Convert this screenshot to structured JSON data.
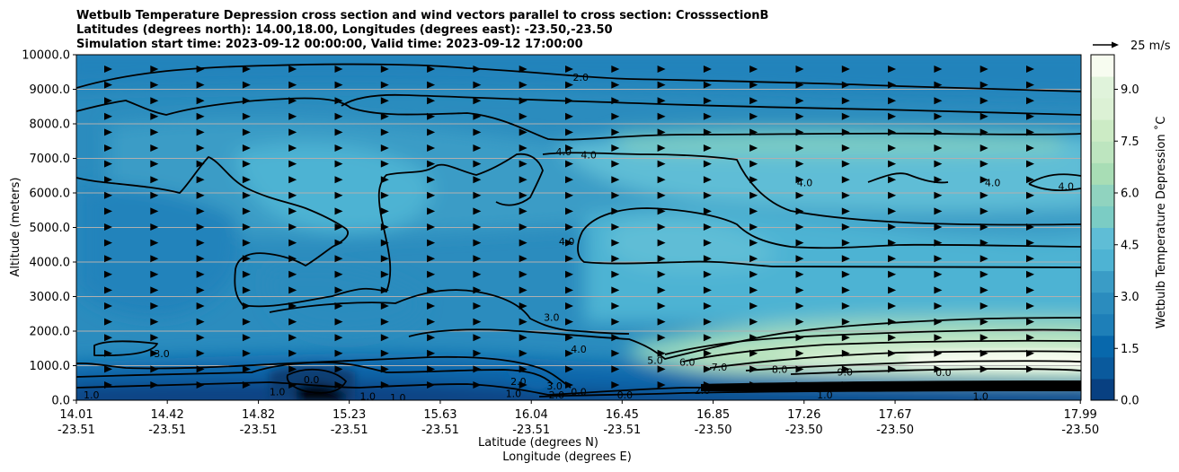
{
  "title_lines": [
    "Wetbulb Temperature Depression cross section and wind vectors parallel to cross section: CrosssectionB",
    "Latitudes (degrees north): 14.00,18.00, Longitudes (degrees east): -23.50,-23.50",
    "Simulation start time: 2023-09-12 00:00:00, Valid time: 2023-09-12 17:00:00"
  ],
  "chart_data": {
    "type": "contourf",
    "y_axis": {
      "label": "Altitude (meters)",
      "range": [
        0,
        10000
      ],
      "ticks": [
        0,
        1000,
        2000,
        3000,
        4000,
        5000,
        6000,
        7000,
        8000,
        9000,
        10000
      ],
      "tick_labels": [
        "0.0",
        "1000.0",
        "2000.0",
        "3000.0",
        "4000.0",
        "5000.0",
        "6000.0",
        "7000.0",
        "8000.0",
        "9000.0",
        "10000.0"
      ],
      "grid": true
    },
    "x_axis": {
      "label_line1": "Latitude (degrees N)",
      "label_line2": "Longitude (degrees E)",
      "ticks": [
        {
          "lat": "14.01",
          "lon": "-23.51",
          "frac": 0.0
        },
        {
          "lat": "14.42",
          "lon": "-23.51",
          "frac": 0.0905
        },
        {
          "lat": "14.82",
          "lon": "-23.51",
          "frac": 0.1812
        },
        {
          "lat": "15.23",
          "lon": "-23.51",
          "frac": 0.2716
        },
        {
          "lat": "15.63",
          "lon": "-23.51",
          "frac": 0.3622
        },
        {
          "lat": "16.04",
          "lon": "-23.51",
          "frac": 0.4528
        },
        {
          "lat": "16.45",
          "lon": "-23.51",
          "frac": 0.5432
        },
        {
          "lat": "16.85",
          "lon": "-23.50",
          "frac": 0.6338
        },
        {
          "lat": "17.26",
          "lon": "-23.50",
          "frac": 0.7243
        },
        {
          "lat": "17.67",
          "lon": "-23.50",
          "frac": 0.8149
        },
        {
          "lat": "17.99",
          "lon": "-23.50",
          "frac": 0.9993
        }
      ]
    },
    "colorbar": {
      "label": "Wetbulb Temperature Depression ˚C",
      "range": [
        0,
        10
      ],
      "ticks": [
        "0.0",
        "1.5",
        "3.0",
        "4.5",
        "6.0",
        "7.5",
        "9.0"
      ],
      "tick_values": [
        0,
        1.5,
        3.0,
        4.5,
        6.0,
        7.5,
        9.0
      ],
      "level_colors": [
        "#084081",
        "#0a5a9d",
        "#0868ac",
        "#1e7fb8",
        "#2b8cbe",
        "#3a9cc6",
        "#4eb3d3",
        "#5fbdd6",
        "#7bccc4",
        "#90d3bf",
        "#a8ddb5",
        "#bde5bf",
        "#ccebc5",
        "#dcf1d5",
        "#e0f3db",
        "#f7fcf0"
      ]
    },
    "wind": {
      "reference_label": "25 m/s",
      "reference_speed": 25
    },
    "contour_labels": [
      {
        "text": "2.0",
        "x_frac": 0.502,
        "alt": 9350
      },
      {
        "text": "4.0",
        "x_frac": 0.485,
        "alt": 7200
      },
      {
        "text": "4.0",
        "x_frac": 0.51,
        "alt": 7100
      },
      {
        "text": "4.0",
        "x_frac": 0.725,
        "alt": 6300
      },
      {
        "text": "4.0",
        "x_frac": 0.912,
        "alt": 6300
      },
      {
        "text": "4.0",
        "x_frac": 0.985,
        "alt": 6200
      },
      {
        "text": "4.0",
        "x_frac": 0.488,
        "alt": 4600
      },
      {
        "text": "3.0",
        "x_frac": 0.473,
        "alt": 2400
      },
      {
        "text": "4.0",
        "x_frac": 0.5,
        "alt": 1480
      },
      {
        "text": "3.0",
        "x_frac": 0.085,
        "alt": 1350
      },
      {
        "text": "5.0",
        "x_frac": 0.576,
        "alt": 1150
      },
      {
        "text": "6.0",
        "x_frac": 0.608,
        "alt": 1100
      },
      {
        "text": "7.0",
        "x_frac": 0.64,
        "alt": 960
      },
      {
        "text": "8.0",
        "x_frac": 0.7,
        "alt": 900
      },
      {
        "text": "9.0",
        "x_frac": 0.765,
        "alt": 820
      },
      {
        "text": "0.0",
        "x_frac": 0.863,
        "alt": 800
      },
      {
        "text": "0.0",
        "x_frac": 0.82,
        "alt": 400
      },
      {
        "text": "0.0",
        "x_frac": 0.234,
        "alt": 600
      },
      {
        "text": "1.0",
        "x_frac": 0.015,
        "alt": 150
      },
      {
        "text": "1.0",
        "x_frac": 0.2,
        "alt": 250
      },
      {
        "text": "1.0",
        "x_frac": 0.29,
        "alt": 120
      },
      {
        "text": "1.0",
        "x_frac": 0.32,
        "alt": 80
      },
      {
        "text": "2.0",
        "x_frac": 0.44,
        "alt": 550
      },
      {
        "text": "1.0",
        "x_frac": 0.435,
        "alt": 200
      },
      {
        "text": "3.0",
        "x_frac": 0.476,
        "alt": 420
      },
      {
        "text": "2.0",
        "x_frac": 0.478,
        "alt": 150
      },
      {
        "text": "0.0",
        "x_frac": 0.5,
        "alt": 250
      },
      {
        "text": "0.0",
        "x_frac": 0.546,
        "alt": 150
      },
      {
        "text": "2.0",
        "x_frac": 0.623,
        "alt": 280
      },
      {
        "text": "1.0",
        "x_frac": 0.745,
        "alt": 150
      },
      {
        "text": "1.0",
        "x_frac": 0.9,
        "alt": 120
      }
    ]
  }
}
